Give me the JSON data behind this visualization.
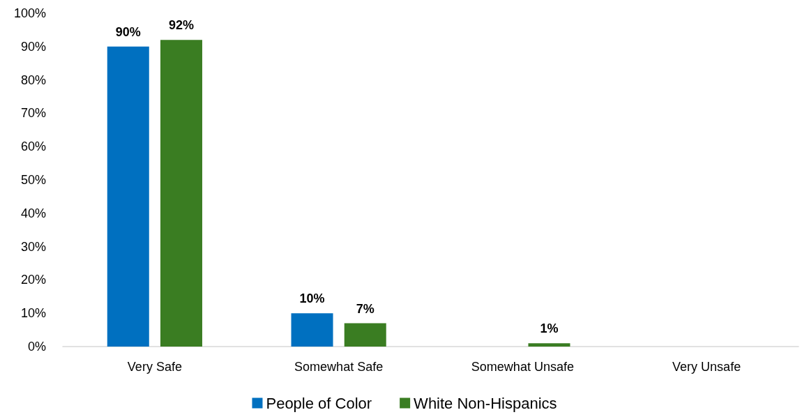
{
  "chart_data": {
    "type": "bar",
    "categories": [
      "Very Safe",
      "Somewhat Safe",
      "Somewhat Unsafe",
      "Very Unsafe"
    ],
    "series": [
      {
        "name": "People of Color",
        "color": "#0070c0",
        "values": [
          90,
          10,
          0,
          0
        ],
        "value_labels": [
          "90%",
          "10%",
          null,
          null
        ]
      },
      {
        "name": "White Non-Hispanics",
        "color": "#3a7d22",
        "values": [
          92,
          7,
          1,
          0
        ],
        "value_labels": [
          "92%",
          "7%",
          "1%",
          null
        ]
      }
    ],
    "ylim": [
      0,
      100
    ],
    "yticks": [
      {
        "value": 0,
        "label": "0%"
      },
      {
        "value": 10,
        "label": "10%"
      },
      {
        "value": 20,
        "label": "20%"
      },
      {
        "value": 30,
        "label": "30%"
      },
      {
        "value": 40,
        "label": "40%"
      },
      {
        "value": 50,
        "label": "50%"
      },
      {
        "value": 60,
        "label": "60%"
      },
      {
        "value": 70,
        "label": "70%"
      },
      {
        "value": 80,
        "label": "80%"
      },
      {
        "value": 90,
        "label": "90%"
      },
      {
        "value": 100,
        "label": "100%"
      }
    ],
    "grid": false,
    "legend": "bottom"
  }
}
